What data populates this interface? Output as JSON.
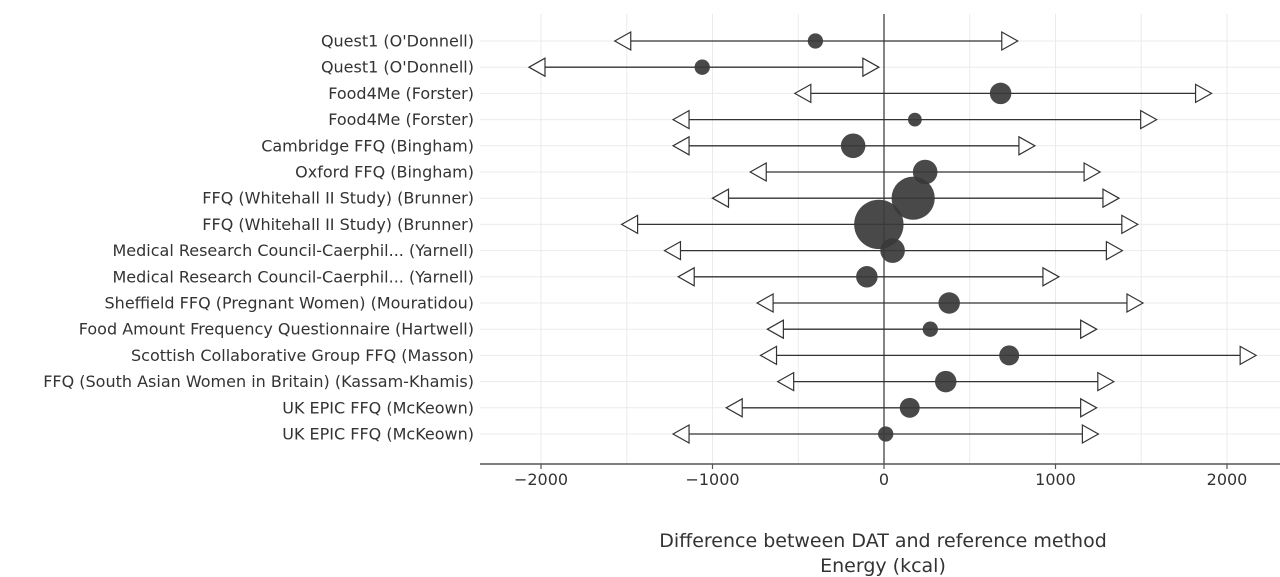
{
  "chart_data": {
    "type": "forest",
    "xlabel_lines": [
      "Difference between DAT and reference method",
      "Energy (kcal)"
    ],
    "xlim": [
      -2400,
      2300
    ],
    "xticks": [
      -2000,
      -1000,
      0,
      1000,
      2000
    ],
    "xtick_labels": [
      "−2000",
      "−1000",
      "0",
      "1000",
      "2000"
    ],
    "reference_line": 0,
    "rows": [
      {
        "label": "Quest1 (O'Donnell)",
        "mean": -400,
        "lower": -1570,
        "upper": 780,
        "weight": 3
      },
      {
        "label": "Quest1 (O'Donnell)",
        "mean": -1060,
        "lower": -2070,
        "upper": -30,
        "weight": 3
      },
      {
        "label": "Food4Me (Forster)",
        "mean": 680,
        "lower": -520,
        "upper": 1910,
        "weight": 5
      },
      {
        "label": "Food4Me (Forster)",
        "mean": 180,
        "lower": -1230,
        "upper": 1590,
        "weight": 2.5
      },
      {
        "label": "Cambridge FFQ (Bingham)",
        "mean": -180,
        "lower": -1230,
        "upper": 880,
        "weight": 6
      },
      {
        "label": "Oxford FFQ (Bingham)",
        "mean": 240,
        "lower": -780,
        "upper": 1260,
        "weight": 6
      },
      {
        "label": "FFQ (Whitehall II Study) (Brunner)",
        "mean": 170,
        "lower": -1000,
        "upper": 1370,
        "weight": 12
      },
      {
        "label": "FFQ (Whitehall II Study) (Brunner)",
        "mean": -30,
        "lower": -1530,
        "upper": 1480,
        "weight": 14
      },
      {
        "label": "Medical Research Council-Caerphil... (Yarnell)",
        "mean": 50,
        "lower": -1280,
        "upper": 1390,
        "weight": 6
      },
      {
        "label": "Medical Research Council-Caerphil... (Yarnell)",
        "mean": -100,
        "lower": -1200,
        "upper": 1020,
        "weight": 5
      },
      {
        "label": "Sheffield FFQ (Pregnant Women) (Mouratidou)",
        "mean": 380,
        "lower": -740,
        "upper": 1510,
        "weight": 5
      },
      {
        "label": "Food Amount Frequency Questionnaire (Hartwell)",
        "mean": 270,
        "lower": -680,
        "upper": 1240,
        "weight": 3
      },
      {
        "label": "Scottish Collaborative Group FFQ (Masson)",
        "mean": 730,
        "lower": -720,
        "upper": 2170,
        "weight": 4.5
      },
      {
        "label": "FFQ (South Asian Women in Britain) (Kassam-Khamis)",
        "mean": 360,
        "lower": -620,
        "upper": 1340,
        "weight": 5
      },
      {
        "label": "UK EPIC FFQ (McKeown)",
        "mean": 150,
        "lower": -920,
        "upper": 1240,
        "weight": 4.5
      },
      {
        "label": "UK EPIC FFQ (McKeown)",
        "mean": 10,
        "lower": -1230,
        "upper": 1250,
        "weight": 3
      }
    ]
  },
  "colors": {
    "marker": "#3a3a3a",
    "line": "#333333",
    "grid": "#ebebeb",
    "text": "#333333"
  }
}
